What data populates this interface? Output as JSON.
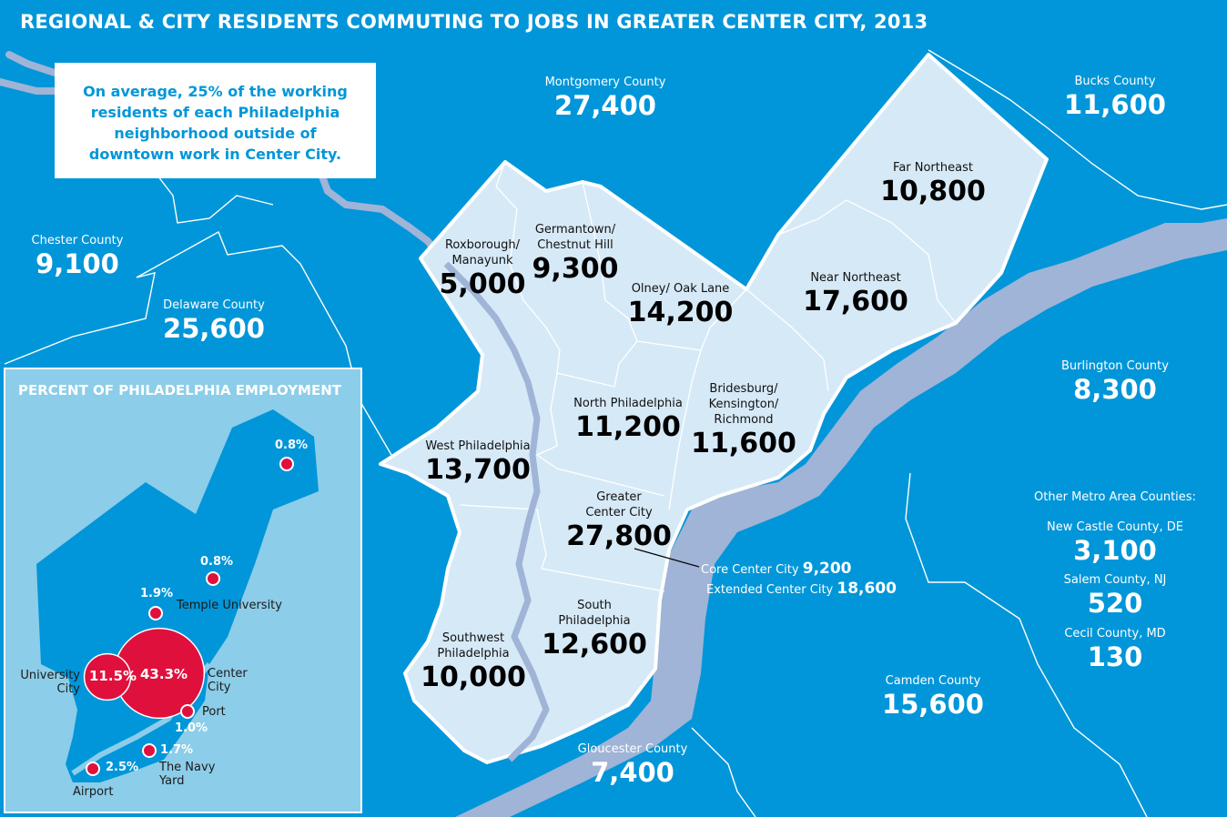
{
  "title": "REGIONAL & CITY RESIDENTS COMMUTING TO JOBS IN GREATER CENTER CITY, 2013",
  "note": "On average, 25% of the working residents of each Philadelphia neighborhood outside of downtown work in Center City.",
  "colors": {
    "background": "#0096d9",
    "city_fill": "#d6e9f7",
    "river": "#9fb4d6",
    "inset_bg": "#8ccde9",
    "marker": "#e0103d"
  },
  "counties": {
    "montgomery": {
      "name": "Montgomery County",
      "value": "27,400"
    },
    "bucks": {
      "name": "Bucks County",
      "value": "11,600"
    },
    "chester": {
      "name": "Chester County",
      "value": "9,100"
    },
    "delaware": {
      "name": "Delaware County",
      "value": "25,600"
    },
    "burlington": {
      "name": "Burlington County",
      "value": "8,300"
    },
    "camden": {
      "name": "Camden County",
      "value": "15,600"
    },
    "gloucester": {
      "name": "Gloucester County",
      "value": "7,400"
    },
    "other_header": "Other Metro Area Counties:",
    "new_castle": {
      "name": "New Castle County, DE",
      "value": "3,100"
    },
    "salem": {
      "name": "Salem County, NJ",
      "value": "520"
    },
    "cecil": {
      "name": "Cecil County, MD",
      "value": "130"
    }
  },
  "neighborhoods": {
    "far_northeast": {
      "name": "Far Northeast",
      "value": "10,800"
    },
    "near_northeast": {
      "name": "Near Northeast",
      "value": "17,600"
    },
    "roxborough": {
      "name1": "Roxborough/",
      "name2": "Manayunk",
      "value": "5,000"
    },
    "germantown": {
      "name1": "Germantown/",
      "name2": "Chestnut Hill",
      "value": "9,300"
    },
    "olney": {
      "name": "Olney/ Oak Lane",
      "value": "14,200"
    },
    "north_phila": {
      "name": "North Philadelphia",
      "value": "11,200"
    },
    "bridesburg": {
      "name1": "Bridesburg/",
      "name2": "Kensington/",
      "name3": "Richmond",
      "value": "11,600"
    },
    "west_phila": {
      "name": "West Philadelphia",
      "value": "13,700"
    },
    "greater_cc": {
      "name1": "Greater",
      "name2": "Center City",
      "value": "27,800"
    },
    "south_phila": {
      "name1": "South",
      "name2": "Philadelphia",
      "value": "12,600"
    },
    "southwest": {
      "name1": "Southwest",
      "name2": "Philadelphia",
      "value": "10,000"
    }
  },
  "core": {
    "core_label": "Core Center City",
    "core_value": "9,200",
    "extended_label": "Extended Center City",
    "extended_value": "18,600"
  },
  "inset": {
    "title": "PERCENT OF PHILADELPHIA EMPLOYMENT",
    "points": [
      {
        "id": "far_ne",
        "pct": "0.8%",
        "share": 0.008
      },
      {
        "id": "ne",
        "pct": "0.8%",
        "share": 0.008
      },
      {
        "id": "temple",
        "pct": "1.9%",
        "share": 0.019,
        "label": "Temple University"
      },
      {
        "id": "center_city",
        "pct": "43.3%",
        "share": 0.433,
        "label": "Center City"
      },
      {
        "id": "university_city",
        "pct": "11.5%",
        "share": 0.115,
        "label": "University City"
      },
      {
        "id": "port",
        "pct": "1.0%",
        "share": 0.01,
        "label": "Port"
      },
      {
        "id": "navy_yard",
        "pct": "1.7%",
        "share": 0.017,
        "label": "The Navy Yard"
      },
      {
        "id": "airport",
        "pct": "2.5%",
        "share": 0.025,
        "label": "Airport"
      }
    ]
  }
}
